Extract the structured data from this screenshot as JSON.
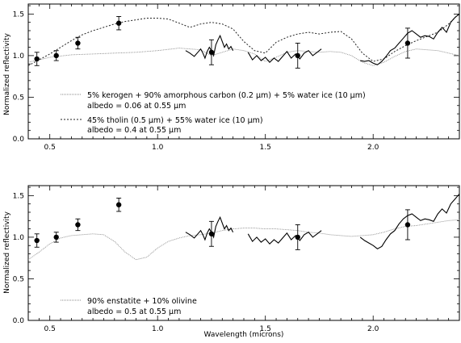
{
  "chart_data": [
    {
      "type": "line",
      "xlabel": "",
      "ylabel": "Normalized reflectivity",
      "xlim": [
        0.4,
        2.4
      ],
      "ylim": [
        0.0,
        1.62
      ],
      "xticks": [
        "0.5",
        "1.0",
        "1.5",
        "2.0"
      ],
      "yticks": [
        "0.0",
        "0.5",
        "1.0",
        "1.5"
      ],
      "xtick_values": [
        0.5,
        1.0,
        1.5,
        2.0
      ],
      "ytick_values": [
        0.0,
        0.5,
        1.0,
        1.5
      ],
      "legend_position": "bottom-left",
      "legend": [
        {
          "label": "5% kerogen + 90% amorphous carbon (0.2 µm) + 5% water ice (10 µm)",
          "note": "albedo = 0.06 at 0.55 µm",
          "style": "dotted"
        },
        {
          "label": "45% tholin (0.5 µm) + 55% water ice (10 µm)",
          "note": "albedo = 0.4 at 0.55 µm",
          "style": "dashed"
        }
      ],
      "points": [
        {
          "x": 0.44,
          "y": 0.96,
          "err": 0.08
        },
        {
          "x": 0.53,
          "y": 1.0,
          "err": 0.06
        },
        {
          "x": 0.63,
          "y": 1.15,
          "err": 0.07
        },
        {
          "x": 0.82,
          "y": 1.39,
          "err": 0.08
        },
        {
          "x": 1.25,
          "y": 1.04,
          "err": 0.15
        },
        {
          "x": 1.65,
          "y": 1.0,
          "err": 0.15
        },
        {
          "x": 2.16,
          "y": 1.15,
          "err": 0.18
        }
      ],
      "observed_spectrum": [
        [
          [
            1.13,
            1.06
          ],
          [
            1.15,
            1.03
          ],
          [
            1.17,
            0.99
          ],
          [
            1.19,
            1.05
          ],
          [
            1.2,
            1.08
          ],
          [
            1.21,
            1.03
          ],
          [
            1.22,
            0.97
          ],
          [
            1.23,
            1.05
          ],
          [
            1.24,
            1.1
          ],
          [
            1.25,
            1.06
          ],
          [
            1.26,
            1.0
          ],
          [
            1.27,
            1.13
          ],
          [
            1.28,
            1.19
          ],
          [
            1.29,
            1.24
          ],
          [
            1.3,
            1.17
          ],
          [
            1.31,
            1.1
          ],
          [
            1.32,
            1.14
          ],
          [
            1.33,
            1.08
          ],
          [
            1.34,
            1.11
          ],
          [
            1.35,
            1.06
          ]
        ],
        [
          [
            1.42,
            1.04
          ],
          [
            1.44,
            0.95
          ],
          [
            1.46,
            1.0
          ],
          [
            1.48,
            0.94
          ],
          [
            1.5,
            0.98
          ],
          [
            1.52,
            0.92
          ],
          [
            1.54,
            0.97
          ],
          [
            1.56,
            0.93
          ],
          [
            1.58,
            0.99
          ],
          [
            1.6,
            1.05
          ],
          [
            1.62,
            0.97
          ],
          [
            1.64,
            1.02
          ],
          [
            1.66,
            0.96
          ],
          [
            1.68,
            1.03
          ],
          [
            1.7,
            1.06
          ],
          [
            1.72,
            1.0
          ],
          [
            1.74,
            1.04
          ],
          [
            1.76,
            1.08
          ]
        ],
        [
          [
            1.94,
            0.94
          ],
          [
            1.96,
            0.93
          ],
          [
            1.98,
            0.94
          ],
          [
            2.0,
            0.91
          ],
          [
            2.02,
            0.89
          ],
          [
            2.04,
            0.93
          ],
          [
            2.06,
            0.99
          ],
          [
            2.08,
            1.06
          ],
          [
            2.1,
            1.09
          ],
          [
            2.12,
            1.15
          ],
          [
            2.14,
            1.21
          ],
          [
            2.16,
            1.27
          ],
          [
            2.18,
            1.3
          ],
          [
            2.2,
            1.26
          ],
          [
            2.22,
            1.22
          ],
          [
            2.24,
            1.24
          ],
          [
            2.26,
            1.23
          ],
          [
            2.28,
            1.2
          ],
          [
            2.3,
            1.28
          ],
          [
            2.32,
            1.34
          ],
          [
            2.34,
            1.28
          ],
          [
            2.36,
            1.4
          ],
          [
            2.38,
            1.46
          ],
          [
            2.4,
            1.5
          ]
        ]
      ],
      "model_curves": [
        {
          "style": "dotted",
          "points": [
            [
              0.4,
              0.92
            ],
            [
              0.5,
              0.98
            ],
            [
              0.6,
              1.01
            ],
            [
              0.7,
              1.02
            ],
            [
              0.8,
              1.03
            ],
            [
              0.9,
              1.04
            ],
            [
              1.0,
              1.06
            ],
            [
              1.1,
              1.09
            ],
            [
              1.2,
              1.07
            ],
            [
              1.25,
              1.0
            ],
            [
              1.3,
              1.04
            ],
            [
              1.35,
              1.08
            ],
            [
              1.4,
              1.06
            ],
            [
              1.45,
              1.02
            ],
            [
              1.5,
              0.93
            ],
            [
              1.55,
              0.98
            ],
            [
              1.6,
              1.04
            ],
            [
              1.65,
              1.06
            ],
            [
              1.7,
              1.05
            ],
            [
              1.75,
              1.04
            ],
            [
              1.8,
              1.05
            ],
            [
              1.85,
              1.04
            ],
            [
              1.9,
              1.0
            ],
            [
              1.95,
              0.92
            ],
            [
              2.0,
              0.88
            ],
            [
              2.05,
              0.92
            ],
            [
              2.1,
              0.99
            ],
            [
              2.15,
              1.05
            ],
            [
              2.2,
              1.08
            ],
            [
              2.25,
              1.07
            ],
            [
              2.3,
              1.06
            ],
            [
              2.35,
              1.03
            ],
            [
              2.4,
              1.0
            ]
          ]
        },
        {
          "style": "dashed",
          "points": [
            [
              0.4,
              0.88
            ],
            [
              0.45,
              0.95
            ],
            [
              0.5,
              1.02
            ],
            [
              0.55,
              1.1
            ],
            [
              0.6,
              1.18
            ],
            [
              0.65,
              1.25
            ],
            [
              0.7,
              1.3
            ],
            [
              0.75,
              1.34
            ],
            [
              0.8,
              1.38
            ],
            [
              0.85,
              1.41
            ],
            [
              0.9,
              1.43
            ],
            [
              0.95,
              1.45
            ],
            [
              1.0,
              1.45
            ],
            [
              1.05,
              1.44
            ],
            [
              1.1,
              1.39
            ],
            [
              1.15,
              1.34
            ],
            [
              1.2,
              1.38
            ],
            [
              1.25,
              1.4
            ],
            [
              1.3,
              1.38
            ],
            [
              1.35,
              1.32
            ],
            [
              1.4,
              1.17
            ],
            [
              1.45,
              1.06
            ],
            [
              1.5,
              1.03
            ],
            [
              1.55,
              1.16
            ],
            [
              1.6,
              1.22
            ],
            [
              1.65,
              1.26
            ],
            [
              1.7,
              1.28
            ],
            [
              1.75,
              1.26
            ],
            [
              1.8,
              1.28
            ],
            [
              1.85,
              1.29
            ],
            [
              1.9,
              1.2
            ],
            [
              1.95,
              1.03
            ],
            [
              2.0,
              0.93
            ],
            [
              2.05,
              0.96
            ],
            [
              2.1,
              1.05
            ],
            [
              2.15,
              1.12
            ],
            [
              2.2,
              1.18
            ],
            [
              2.25,
              1.23
            ],
            [
              2.3,
              1.28
            ],
            [
              2.35,
              1.38
            ],
            [
              2.4,
              1.51
            ]
          ]
        }
      ]
    },
    {
      "type": "line",
      "xlabel": "Wavelength (microns)",
      "ylabel": "Normalized reflectivity",
      "xlim": [
        0.4,
        2.4
      ],
      "ylim": [
        0.0,
        1.62
      ],
      "xticks": [
        "0.5",
        "1.0",
        "1.5",
        "2.0"
      ],
      "yticks": [
        "0.0",
        "0.5",
        "1.0",
        "1.5"
      ],
      "xtick_values": [
        0.5,
        1.0,
        1.5,
        2.0
      ],
      "ytick_values": [
        0.0,
        0.5,
        1.0,
        1.5
      ],
      "legend_position": "bottom-left",
      "legend": [
        {
          "label": "90% enstatite + 10% olivine",
          "note": "albedo = 0.5 at 0.55 µm",
          "style": "dotted"
        }
      ],
      "points": [
        {
          "x": 0.44,
          "y": 0.96,
          "err": 0.08
        },
        {
          "x": 0.53,
          "y": 1.0,
          "err": 0.06
        },
        {
          "x": 0.63,
          "y": 1.15,
          "err": 0.07
        },
        {
          "x": 0.82,
          "y": 1.39,
          "err": 0.08
        },
        {
          "x": 1.25,
          "y": 1.04,
          "err": 0.15
        },
        {
          "x": 1.65,
          "y": 1.0,
          "err": 0.15
        },
        {
          "x": 2.16,
          "y": 1.15,
          "err": 0.18
        }
      ],
      "observed_spectrum": [
        [
          [
            1.13,
            1.06
          ],
          [
            1.15,
            1.03
          ],
          [
            1.17,
            0.99
          ],
          [
            1.19,
            1.05
          ],
          [
            1.2,
            1.08
          ],
          [
            1.21,
            1.03
          ],
          [
            1.22,
            0.97
          ],
          [
            1.23,
            1.05
          ],
          [
            1.24,
            1.1
          ],
          [
            1.25,
            1.06
          ],
          [
            1.26,
            1.0
          ],
          [
            1.27,
            1.13
          ],
          [
            1.28,
            1.19
          ],
          [
            1.29,
            1.24
          ],
          [
            1.3,
            1.17
          ],
          [
            1.31,
            1.1
          ],
          [
            1.32,
            1.14
          ],
          [
            1.33,
            1.08
          ],
          [
            1.34,
            1.11
          ],
          [
            1.35,
            1.06
          ]
        ],
        [
          [
            1.42,
            1.04
          ],
          [
            1.44,
            0.95
          ],
          [
            1.46,
            1.0
          ],
          [
            1.48,
            0.94
          ],
          [
            1.5,
            0.98
          ],
          [
            1.52,
            0.92
          ],
          [
            1.54,
            0.97
          ],
          [
            1.56,
            0.93
          ],
          [
            1.58,
            0.99
          ],
          [
            1.6,
            1.05
          ],
          [
            1.62,
            0.97
          ],
          [
            1.64,
            1.02
          ],
          [
            1.66,
            0.96
          ],
          [
            1.68,
            1.03
          ],
          [
            1.7,
            1.06
          ],
          [
            1.72,
            1.0
          ],
          [
            1.74,
            1.04
          ],
          [
            1.76,
            1.08
          ]
        ],
        [
          [
            1.94,
            1.0
          ],
          [
            1.96,
            0.96
          ],
          [
            1.98,
            0.93
          ],
          [
            2.0,
            0.9
          ],
          [
            2.02,
            0.86
          ],
          [
            2.04,
            0.89
          ],
          [
            2.06,
            0.97
          ],
          [
            2.08,
            1.04
          ],
          [
            2.1,
            1.08
          ],
          [
            2.12,
            1.16
          ],
          [
            2.14,
            1.22
          ],
          [
            2.16,
            1.26
          ],
          [
            2.18,
            1.28
          ],
          [
            2.2,
            1.24
          ],
          [
            2.22,
            1.2
          ],
          [
            2.24,
            1.22
          ],
          [
            2.26,
            1.21
          ],
          [
            2.28,
            1.19
          ],
          [
            2.3,
            1.28
          ],
          [
            2.32,
            1.34
          ],
          [
            2.34,
            1.29
          ],
          [
            2.36,
            1.4
          ],
          [
            2.38,
            1.46
          ],
          [
            2.4,
            1.52
          ]
        ]
      ],
      "model_curves": [
        {
          "style": "dotted",
          "points": [
            [
              0.4,
              0.73
            ],
            [
              0.45,
              0.82
            ],
            [
              0.5,
              0.92
            ],
            [
              0.55,
              0.99
            ],
            [
              0.6,
              1.02
            ],
            [
              0.65,
              1.03
            ],
            [
              0.7,
              1.04
            ],
            [
              0.75,
              1.03
            ],
            [
              0.8,
              0.95
            ],
            [
              0.85,
              0.82
            ],
            [
              0.9,
              0.73
            ],
            [
              0.95,
              0.76
            ],
            [
              1.0,
              0.87
            ],
            [
              1.05,
              0.95
            ],
            [
              1.1,
              0.99
            ],
            [
              1.15,
              1.02
            ],
            [
              1.2,
              1.03
            ],
            [
              1.25,
              1.05
            ],
            [
              1.3,
              1.08
            ],
            [
              1.35,
              1.1
            ],
            [
              1.4,
              1.11
            ],
            [
              1.45,
              1.11
            ],
            [
              1.5,
              1.1
            ],
            [
              1.55,
              1.1
            ],
            [
              1.6,
              1.09
            ],
            [
              1.65,
              1.08
            ],
            [
              1.7,
              1.06
            ],
            [
              1.75,
              1.05
            ],
            [
              1.8,
              1.03
            ],
            [
              1.85,
              1.02
            ],
            [
              1.9,
              1.01
            ],
            [
              1.95,
              1.02
            ],
            [
              2.0,
              1.03
            ],
            [
              2.05,
              1.06
            ],
            [
              2.1,
              1.1
            ],
            [
              2.15,
              1.13
            ],
            [
              2.2,
              1.14
            ],
            [
              2.25,
              1.16
            ],
            [
              2.3,
              1.18
            ],
            [
              2.35,
              1.2
            ],
            [
              2.4,
              1.21
            ]
          ]
        }
      ]
    }
  ]
}
